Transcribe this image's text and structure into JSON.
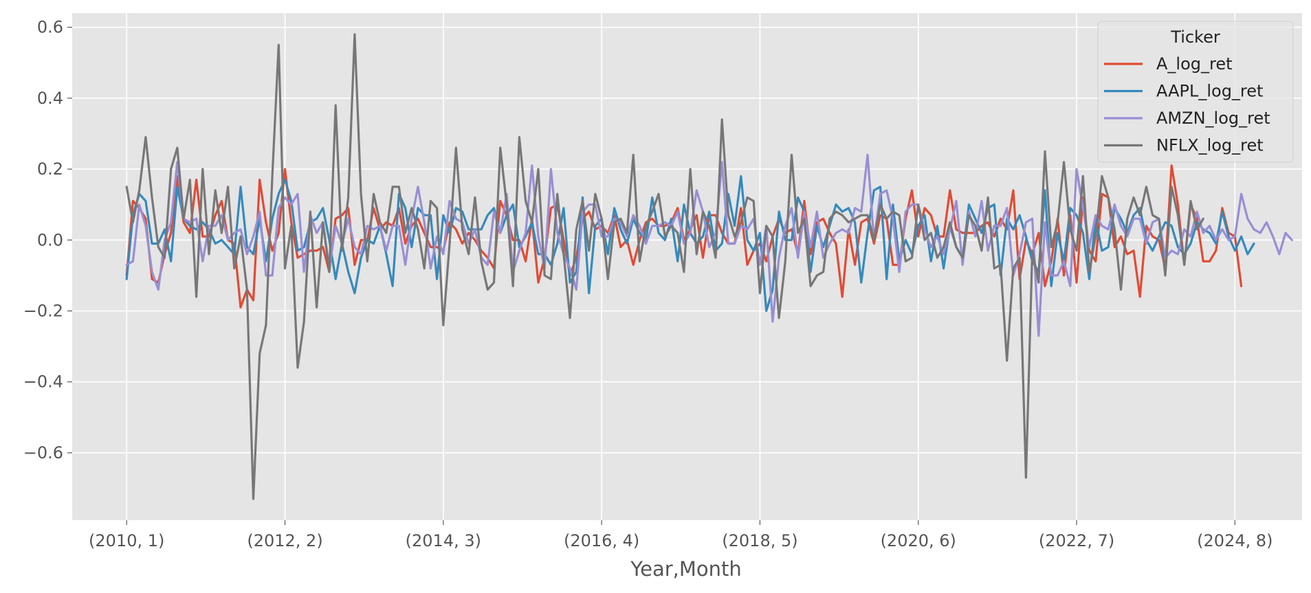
{
  "chart_data": {
    "type": "line",
    "xlabel": "Year,Month",
    "ylabel": "",
    "x_tick_labels": [
      "(2010, 1)",
      "(2012, 2)",
      "(2014, 3)",
      "(2016, 4)",
      "(2018, 5)",
      "(2020, 6)",
      "(2022, 7)",
      "(2024, 8)"
    ],
    "x_tick_index": [
      0,
      25,
      50,
      75,
      100,
      125,
      150,
      175
    ],
    "y_ticks": [
      0.6,
      0.4,
      0.2,
      0.0,
      -0.2,
      -0.4,
      -0.6
    ],
    "y_tick_labels": [
      "0.6",
      "0.4",
      "0.2",
      "0.0",
      "−0.2",
      "−0.4",
      "−0.6"
    ],
    "ylim": [
      -0.79,
      0.64
    ],
    "x_range": [
      -8.6,
      185.6
    ],
    "grid": true,
    "legend": {
      "title": "Ticker",
      "position": "top-right"
    },
    "series": [
      {
        "name": "A_log_ret",
        "color": "#E24A33",
        "values": [
          -0.1,
          0.11,
          0.09,
          0.06,
          -0.11,
          -0.12,
          -0.04,
          0.02,
          0.18,
          0.05,
          0.02,
          0.17,
          0.01,
          0.01,
          0.07,
          0.11,
          0.0,
          -0.01,
          -0.19,
          -0.14,
          -0.17,
          0.17,
          0.05,
          -0.03,
          0.02,
          0.2,
          0.05,
          -0.05,
          -0.04,
          -0.03,
          -0.03,
          -0.02,
          -0.09,
          0.06,
          0.07,
          0.09,
          -0.07,
          0.0,
          0.0,
          0.09,
          0.03,
          0.05,
          0.04,
          0.09,
          -0.01,
          0.04,
          0.06,
          0.02,
          -0.02,
          -0.02,
          -0.03,
          0.05,
          0.03,
          -0.01,
          0.02,
          0.0,
          -0.03,
          -0.05,
          -0.08,
          0.11,
          0.07,
          0.0,
          0.0,
          -0.06,
          0.06,
          -0.12,
          -0.05,
          0.09,
          0.1,
          0.0,
          -0.1,
          -0.05,
          0.06,
          0.08,
          0.03,
          0.04,
          0.02,
          0.07,
          -0.02,
          0.0,
          -0.07,
          0.0,
          0.05,
          0.06,
          0.04,
          0.04,
          0.05,
          0.09,
          0.0,
          0.03,
          0.07,
          -0.05,
          0.07,
          0.07,
          0.02,
          -0.01,
          -0.01,
          0.09,
          -0.07,
          -0.03,
          -0.01,
          -0.06,
          0.01,
          0.06,
          0.02,
          0.03,
          -0.04,
          0.11,
          -0.04,
          0.05,
          0.06,
          0.02,
          -0.01,
          -0.16,
          0.03,
          -0.07,
          0.05,
          0.06,
          -0.01,
          0.07,
          0.06,
          -0.07,
          -0.07,
          0.06,
          0.14,
          0.01,
          0.09,
          0.07,
          0.01,
          0.01,
          0.14,
          0.03,
          0.02,
          0.02,
          0.02,
          0.04,
          0.05,
          0.01,
          0.06,
          0.03,
          0.14,
          -0.11,
          0.0,
          -0.04,
          0.02,
          -0.13,
          -0.06,
          0.06,
          -0.1,
          0.07,
          -0.12,
          0.12,
          -0.03,
          -0.06,
          0.13,
          0.12,
          -0.02,
          0.01,
          -0.04,
          -0.03,
          -0.16,
          0.04,
          0.01,
          0.0,
          -0.08,
          0.21,
          0.1,
          -0.07,
          0.1,
          0.06,
          -0.06,
          -0.06,
          -0.03,
          0.09,
          0.02,
          0.01,
          -0.13
        ]
      },
      {
        "name": "AAPL_log_ret",
        "color": "#348ABD",
        "values": [
          -0.11,
          0.07,
          0.13,
          0.11,
          -0.01,
          -0.01,
          0.03,
          -0.06,
          0.15,
          0.06,
          0.04,
          0.03,
          0.05,
          0.03,
          -0.01,
          0.0,
          -0.02,
          -0.04,
          0.15,
          -0.02,
          -0.04,
          0.06,
          -0.06,
          0.06,
          0.13,
          0.17,
          0.11,
          -0.03,
          -0.02,
          0.05,
          0.06,
          0.09,
          0.0,
          -0.11,
          -0.01,
          -0.09,
          -0.15,
          -0.05,
          0.0,
          -0.01,
          0.04,
          -0.04,
          -0.13,
          0.13,
          0.09,
          -0.02,
          0.09,
          0.07,
          0.07,
          -0.11,
          0.07,
          0.02,
          0.09,
          0.08,
          0.03,
          0.03,
          0.03,
          0.07,
          0.09,
          0.02,
          0.07,
          0.1,
          -0.02,
          0.01,
          0.05,
          -0.04,
          -0.04,
          -0.07,
          -0.01,
          0.09,
          -0.12,
          -0.09,
          0.12,
          -0.15,
          0.04,
          0.06,
          -0.04,
          0.09,
          0.03,
          -0.01,
          0.06,
          0.02,
          0.0,
          0.12,
          0.02,
          0.0,
          0.06,
          -0.06,
          0.1,
          0.02,
          -0.01,
          0.01,
          0.08,
          -0.03,
          -0.01,
          0.13,
          0.04,
          0.18,
          0.0,
          -0.03,
          0.02,
          -0.2,
          -0.14,
          0.08,
          0.0,
          0.0,
          0.12,
          0.08,
          -0.09,
          0.04,
          -0.02,
          0.04,
          0.1,
          0.08,
          0.09,
          0.05,
          -0.12,
          0.02,
          0.14,
          0.15,
          -0.11,
          0.1,
          -0.06,
          0.0,
          -0.04,
          0.04,
          0.07,
          -0.06,
          0.04,
          -0.08,
          0.04,
          -0.02,
          -0.05,
          0.1,
          0.06,
          0.02,
          0.09,
          0.1,
          -0.1,
          0.06,
          0.03,
          0.07,
          0.01,
          -0.06,
          -0.09,
          0.14,
          -0.13,
          0.02,
          -0.06,
          0.09,
          0.07,
          0.02,
          -0.11,
          0.06,
          -0.03,
          -0.02,
          0.09,
          0.06,
          0.02,
          0.07,
          0.09,
          0.0,
          -0.03,
          0.01,
          0.05,
          0.04,
          -0.02,
          -0.04,
          -0.01,
          0.05,
          0.03,
          0.02,
          -0.01,
          0.08,
          0.01,
          -0.03,
          0.01,
          -0.04,
          -0.01
        ]
      },
      {
        "name": "AMZN_log_ret",
        "color": "#988ED5",
        "values": [
          -0.07,
          -0.06,
          0.1,
          0.04,
          -0.09,
          -0.14,
          0.0,
          0.05,
          0.22,
          0.06,
          0.05,
          0.06,
          -0.06,
          0.04,
          0.04,
          0.07,
          0.0,
          0.02,
          0.03,
          -0.04,
          0.01,
          0.08,
          -0.1,
          -0.1,
          0.09,
          0.12,
          0.1,
          0.13,
          -0.09,
          0.07,
          0.02,
          0.05,
          -0.08,
          0.04,
          -0.01,
          0.06,
          -0.02,
          -0.04,
          0.04,
          0.03,
          0.04,
          -0.03,
          0.04,
          0.04,
          -0.07,
          0.06,
          0.15,
          0.05,
          -0.08,
          0.01,
          -0.04,
          0.11,
          0.06,
          0.05,
          -0.01,
          0.03,
          -0.05,
          -0.07,
          0.08,
          0.02,
          0.13,
          -0.09,
          -0.03,
          0.02,
          0.21,
          0.01,
          -0.08,
          0.2,
          0.02,
          -0.04,
          -0.08,
          -0.14,
          0.08,
          0.1,
          0.1,
          0.01,
          0.01,
          0.06,
          0.05,
          0.01,
          0.07,
          0.04,
          -0.01,
          0.04,
          0.04,
          0.05,
          0.04,
          0.08,
          -0.01,
          0.02,
          0.14,
          0.08,
          -0.02,
          0.02,
          0.22,
          -0.01,
          -0.01,
          0.04,
          0.03,
          0.06,
          -0.07,
          0.04,
          -0.23,
          -0.05,
          0.04,
          0.09,
          -0.05,
          0.08,
          -0.02,
          0.08,
          -0.05,
          -0.01,
          0.02,
          0.03,
          0.02,
          0.09,
          0.08,
          0.24,
          0.0,
          0.13,
          0.14,
          0.06,
          -0.09,
          0.08,
          0.1,
          0.1,
          0.03,
          -0.02,
          0.01,
          -0.04,
          0.03,
          0.11,
          -0.07,
          0.08,
          0.01,
          0.11,
          -0.03,
          0.04,
          0.04,
          0.09,
          -0.1,
          -0.04,
          0.05,
          0.06,
          -0.27,
          0.05,
          -0.1,
          -0.1,
          -0.06,
          -0.13,
          0.2,
          0.09,
          -0.02,
          0.07,
          0.04,
          0.03,
          0.1,
          0.04,
          0.01,
          0.06,
          0.06,
          -0.01,
          0.05,
          0.06,
          -0.05,
          -0.03,
          -0.04,
          0.03,
          0.01,
          0.08,
          0.02,
          0.04,
          0.0,
          0.03,
          0.0,
          0.01,
          0.13,
          0.06,
          0.03,
          0.02,
          0.05,
          0.01,
          -0.04,
          0.02,
          0.0
        ]
      },
      {
        "name": "NFLX_log_ret",
        "color": "#777777",
        "values": [
          0.15,
          0.05,
          0.14,
          0.29,
          0.12,
          -0.02,
          -0.05,
          0.2,
          0.26,
          0.06,
          0.17,
          -0.16,
          0.2,
          -0.04,
          0.14,
          0.02,
          0.15,
          -0.08,
          0.01,
          -0.14,
          -0.73,
          -0.32,
          -0.24,
          0.18,
          0.55,
          -0.08,
          0.04,
          -0.36,
          -0.23,
          0.08,
          -0.19,
          0.05,
          -0.09,
          0.38,
          -0.03,
          0.12,
          0.58,
          0.13,
          -0.06,
          0.13,
          0.05,
          0.02,
          0.15,
          0.15,
          0.02,
          0.09,
          0.03,
          -0.08,
          0.11,
          0.09,
          -0.24,
          -0.01,
          0.26,
          0.03,
          -0.04,
          0.12,
          -0.06,
          -0.14,
          -0.12,
          0.26,
          0.1,
          -0.13,
          0.29,
          0.11,
          0.05,
          0.2,
          -0.1,
          -0.11,
          0.13,
          -0.04,
          -0.22,
          0.03,
          0.11,
          -0.03,
          0.13,
          0.06,
          -0.11,
          0.05,
          0.06,
          0.02,
          0.24,
          -0.06,
          0.04,
          0.08,
          0.13,
          0.01,
          0.04,
          0.02,
          -0.09,
          0.2,
          -0.04,
          0.08,
          0.04,
          -0.05,
          0.34,
          0.07,
          0.01,
          0.05,
          0.12,
          0.11,
          -0.15,
          0.04,
          0.01,
          -0.22,
          -0.06,
          0.24,
          0.02,
          0.06,
          -0.13,
          -0.1,
          -0.09,
          0.06,
          0.08,
          0.07,
          0.05,
          0.06,
          0.07,
          0.07,
          0.0,
          0.1,
          0.06,
          0.08,
          0.07,
          -0.06,
          -0.05,
          0.1,
          0.0,
          0.02,
          -0.05,
          -0.02,
          0.05,
          -0.02,
          -0.05,
          0.07,
          0.04,
          -0.03,
          0.12,
          -0.08,
          -0.07,
          -0.34,
          -0.08,
          -0.05,
          -0.67,
          -0.03,
          -0.12,
          0.25,
          -0.02,
          0.05,
          0.22,
          0.03,
          -0.03,
          0.18,
          -0.09,
          0.01,
          0.18,
          0.12,
          0.03,
          -0.14,
          0.06,
          0.12,
          0.07,
          0.15,
          0.07,
          0.06,
          -0.1,
          0.15,
          0.07,
          -0.07,
          0.11,
          0.03,
          0.06
        ]
      }
    ]
  }
}
